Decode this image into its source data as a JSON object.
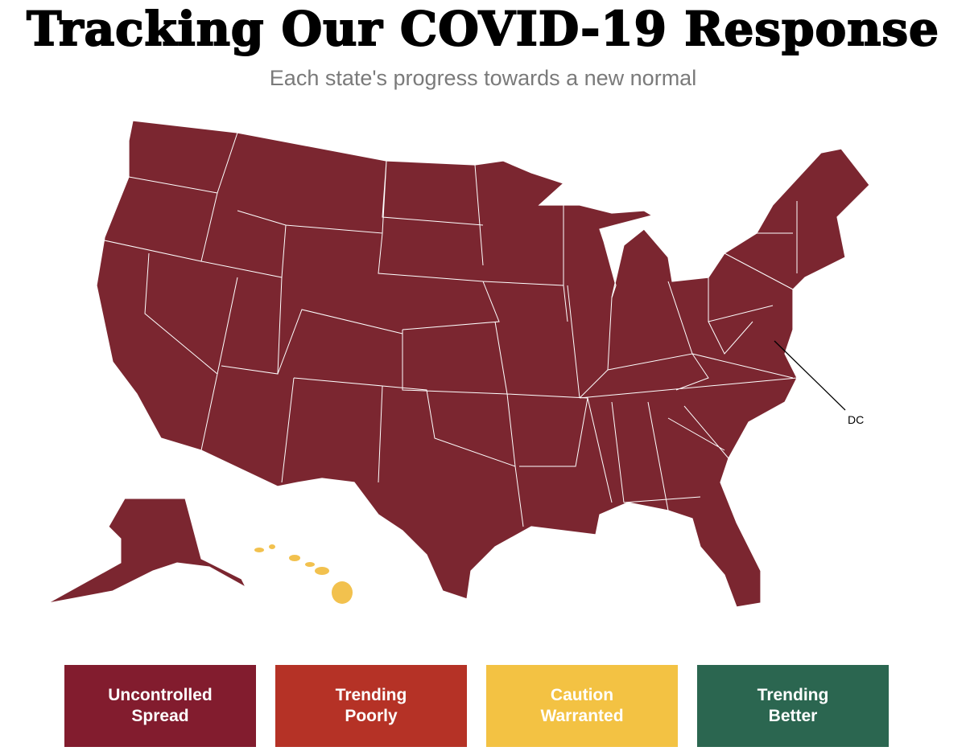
{
  "header": {
    "title": "Tracking Our COVID-19 Response",
    "subtitle": "Each state's progress towards a new normal"
  },
  "map": {
    "label": "DC",
    "mainland_color": "#7b2630",
    "alaska_color": "#7b2630",
    "hawaii_color": "#f2c14e",
    "border_color": "#ffffff"
  },
  "legend": [
    {
      "label": "Uncontrolled Spread",
      "color": "#821c2e"
    },
    {
      "label": "Trending Poorly",
      "color": "#b53226"
    },
    {
      "label": "Caution Warranted",
      "color": "#f3c243"
    },
    {
      "label": "Trending Better",
      "color": "#2b6650"
    }
  ]
}
